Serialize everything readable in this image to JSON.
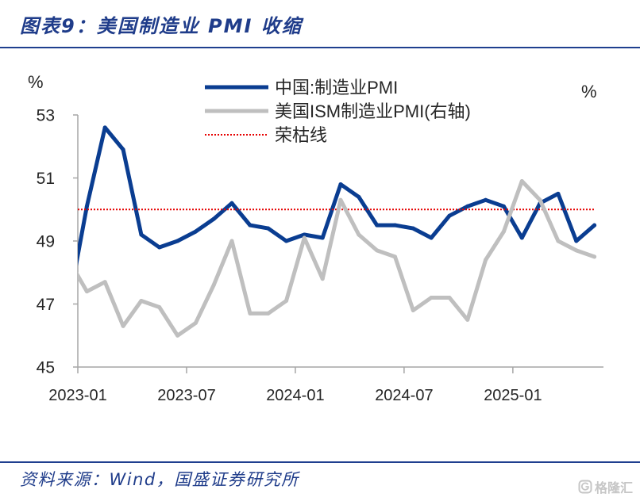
{
  "footer": {
    "source": "资料来源：Wind，国盛证券研究所"
  },
  "watermark": {
    "text": "格隆汇",
    "icon": "gelonghui-logo-icon"
  },
  "colors": {
    "caption_text": "#1f3c8a",
    "divider": "#1f3f8f",
    "axis": "#a6a6a6",
    "watermark": "#c6c6c6"
  },
  "chart_data": {
    "type": "line",
    "title": "图表9：美国制造业 PMI 收缩",
    "x": [
      "2022-12",
      "2023-01",
      "2023-02",
      "2023-03",
      "2023-04",
      "2023-05",
      "2023-06",
      "2023-07",
      "2023-08",
      "2023-09",
      "2023-10",
      "2023-11",
      "2023-12",
      "2024-01",
      "2024-02",
      "2024-03",
      "2024-04",
      "2024-05",
      "2024-06",
      "2024-07",
      "2024-08",
      "2024-09",
      "2024-10",
      "2024-11",
      "2024-12",
      "2025-01",
      "2025-02",
      "2025-03",
      "2025-04",
      "2025-05"
    ],
    "xticks": [
      "2023-01",
      "2023-07",
      "2024-01",
      "2024-07",
      "2025-01"
    ],
    "xlim": [
      "2023-01",
      "2025-06"
    ],
    "ylabel": "%",
    "ylim": [
      45,
      53
    ],
    "yticks": [
      45,
      47,
      49,
      51,
      53
    ],
    "y2label": "%",
    "y2lim": [
      45,
      53
    ],
    "grid": false,
    "legend": "top-center",
    "series": [
      {
        "name": "中国:制造业PMI",
        "axis": "left",
        "color": "#0a3d91",
        "line": "solid",
        "values": [
          47.0,
          50.1,
          52.6,
          51.9,
          49.2,
          48.8,
          49.0,
          49.3,
          49.7,
          50.2,
          49.5,
          49.4,
          49.0,
          49.2,
          49.1,
          50.8,
          50.4,
          49.5,
          49.5,
          49.4,
          49.1,
          49.8,
          50.1,
          50.3,
          50.1,
          49.1,
          50.2,
          50.5,
          49.0,
          49.5
        ]
      },
      {
        "name": "美国ISM制造业PMI(右轴)",
        "axis": "right",
        "color": "#bfbfbf",
        "line": "solid",
        "values": [
          48.4,
          47.4,
          47.7,
          46.3,
          47.1,
          46.9,
          46.0,
          46.4,
          47.6,
          49.0,
          46.7,
          46.7,
          47.1,
          49.1,
          47.8,
          50.3,
          49.2,
          48.7,
          48.5,
          46.8,
          47.2,
          47.2,
          46.5,
          48.4,
          49.3,
          50.9,
          50.3,
          49.0,
          48.7,
          48.5
        ]
      }
    ],
    "reference_lines": [
      {
        "name": "荣枯线",
        "y": 50,
        "color": "#e60000",
        "line": "dotted"
      }
    ]
  }
}
